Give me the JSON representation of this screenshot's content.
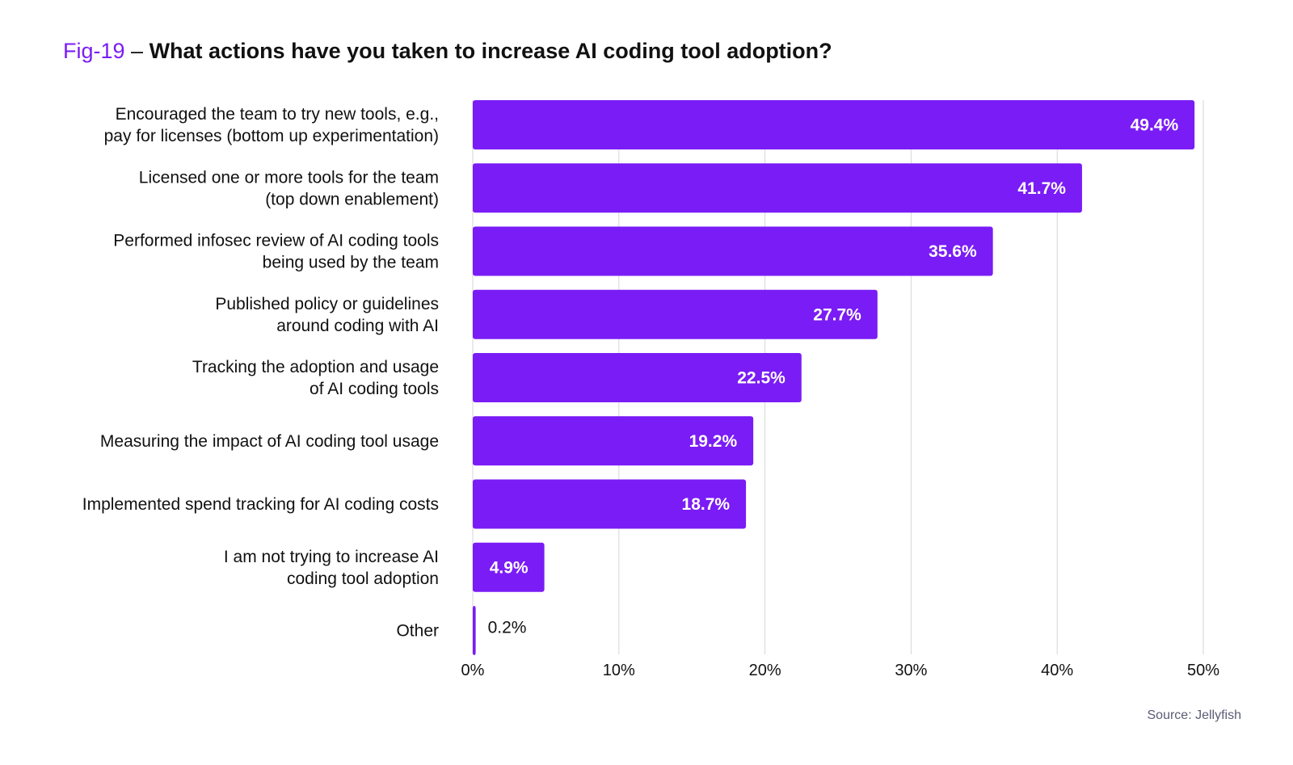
{
  "title": {
    "fig_label": "Fig-19",
    "separator": " – ",
    "question": "What actions have you taken to increase AI coding tool adoption?"
  },
  "source": "Source: Jellyfish",
  "colors": {
    "bar": "#7a1cf5",
    "grid": "#d6d6d6",
    "label_inside": "#ffffff",
    "label_outside": "#111111"
  },
  "chart_data": {
    "type": "bar",
    "orientation": "horizontal",
    "categories": [
      [
        "Encouraged the team to try new tools, e.g.,",
        "pay for licenses (bottom up experimentation)"
      ],
      [
        "Licensed one or more tools for the team",
        "(top down enablement)"
      ],
      [
        "Performed infosec review of AI coding tools",
        "being used by the team"
      ],
      [
        "Published policy or guidelines",
        "around coding with AI"
      ],
      [
        "Tracking the adoption and usage",
        "of AI coding tools"
      ],
      [
        "Measuring the impact of AI coding tool usage"
      ],
      [
        "Implemented spend tracking for AI coding costs"
      ],
      [
        "I am not trying to increase AI",
        "coding tool adoption"
      ],
      [
        "Other"
      ]
    ],
    "values": [
      49.4,
      41.7,
      35.6,
      27.7,
      22.5,
      19.2,
      18.7,
      4.9,
      0.2
    ],
    "value_labels": [
      "49.4%",
      "41.7%",
      "35.6%",
      "27.7%",
      "22.5%",
      "19.2%",
      "18.7%",
      "4.9%",
      "0.2%"
    ],
    "xlim": [
      0,
      50
    ],
    "xticks": [
      0,
      10,
      20,
      30,
      40,
      50
    ],
    "xtick_labels": [
      "0%",
      "10%",
      "20%",
      "30%",
      "40%",
      "50%"
    ],
    "grid": true,
    "title": "What actions have you taken to increase AI coding tool adoption?",
    "xlabel": "",
    "ylabel": ""
  }
}
